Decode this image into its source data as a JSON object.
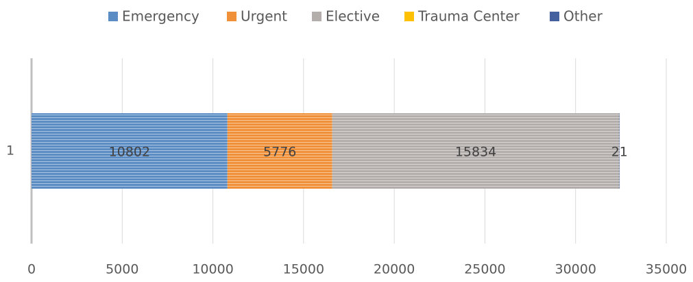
{
  "chart_data": {
    "type": "stacked_bar_horizontal",
    "categories": [
      "1"
    ],
    "series": [
      {
        "name": "Emergency",
        "color": "#5b8cc4",
        "values": [
          10802
        ]
      },
      {
        "name": "Urgent",
        "color": "#f0913a",
        "values": [
          5776
        ]
      },
      {
        "name": "Elective",
        "color": "#b3aeab",
        "values": [
          15834
        ]
      },
      {
        "name": "Trauma Center",
        "color": "#ffc000",
        "values": [
          0
        ]
      },
      {
        "name": "Other",
        "color": "#44609e",
        "values": [
          21
        ]
      }
    ],
    "xlim": [
      0,
      35000
    ],
    "xticks": [
      0,
      5000,
      10000,
      15000,
      20000,
      25000,
      30000,
      35000
    ],
    "grid": true,
    "legend": "top"
  }
}
